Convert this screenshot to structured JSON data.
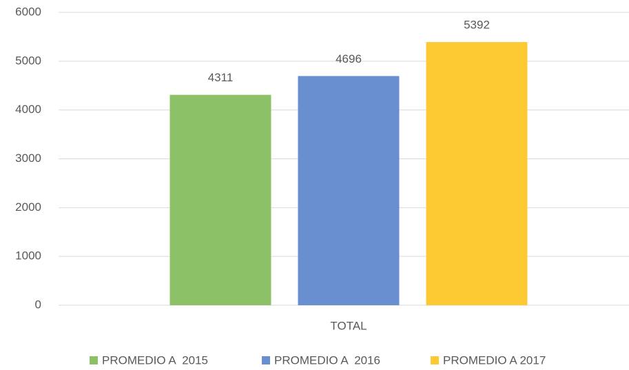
{
  "chart_data": {
    "type": "bar",
    "categories": [
      "TOTAL"
    ],
    "series": [
      {
        "name": "PROMEDIO A  2015",
        "color": "#8cc168",
        "values": [
          4311
        ]
      },
      {
        "name": "PROMEDIO A  2016",
        "color": "#6a8fd0",
        "values": [
          4696
        ]
      },
      {
        "name": "PROMEDIO A 2017",
        "color": "#fdca34",
        "values": [
          5392
        ]
      }
    ],
    "ylim": [
      0,
      6000
    ],
    "yticks": [
      0,
      1000,
      2000,
      3000,
      4000,
      5000,
      6000
    ],
    "grid": true,
    "legend": "bottom",
    "data_labels": true
  }
}
